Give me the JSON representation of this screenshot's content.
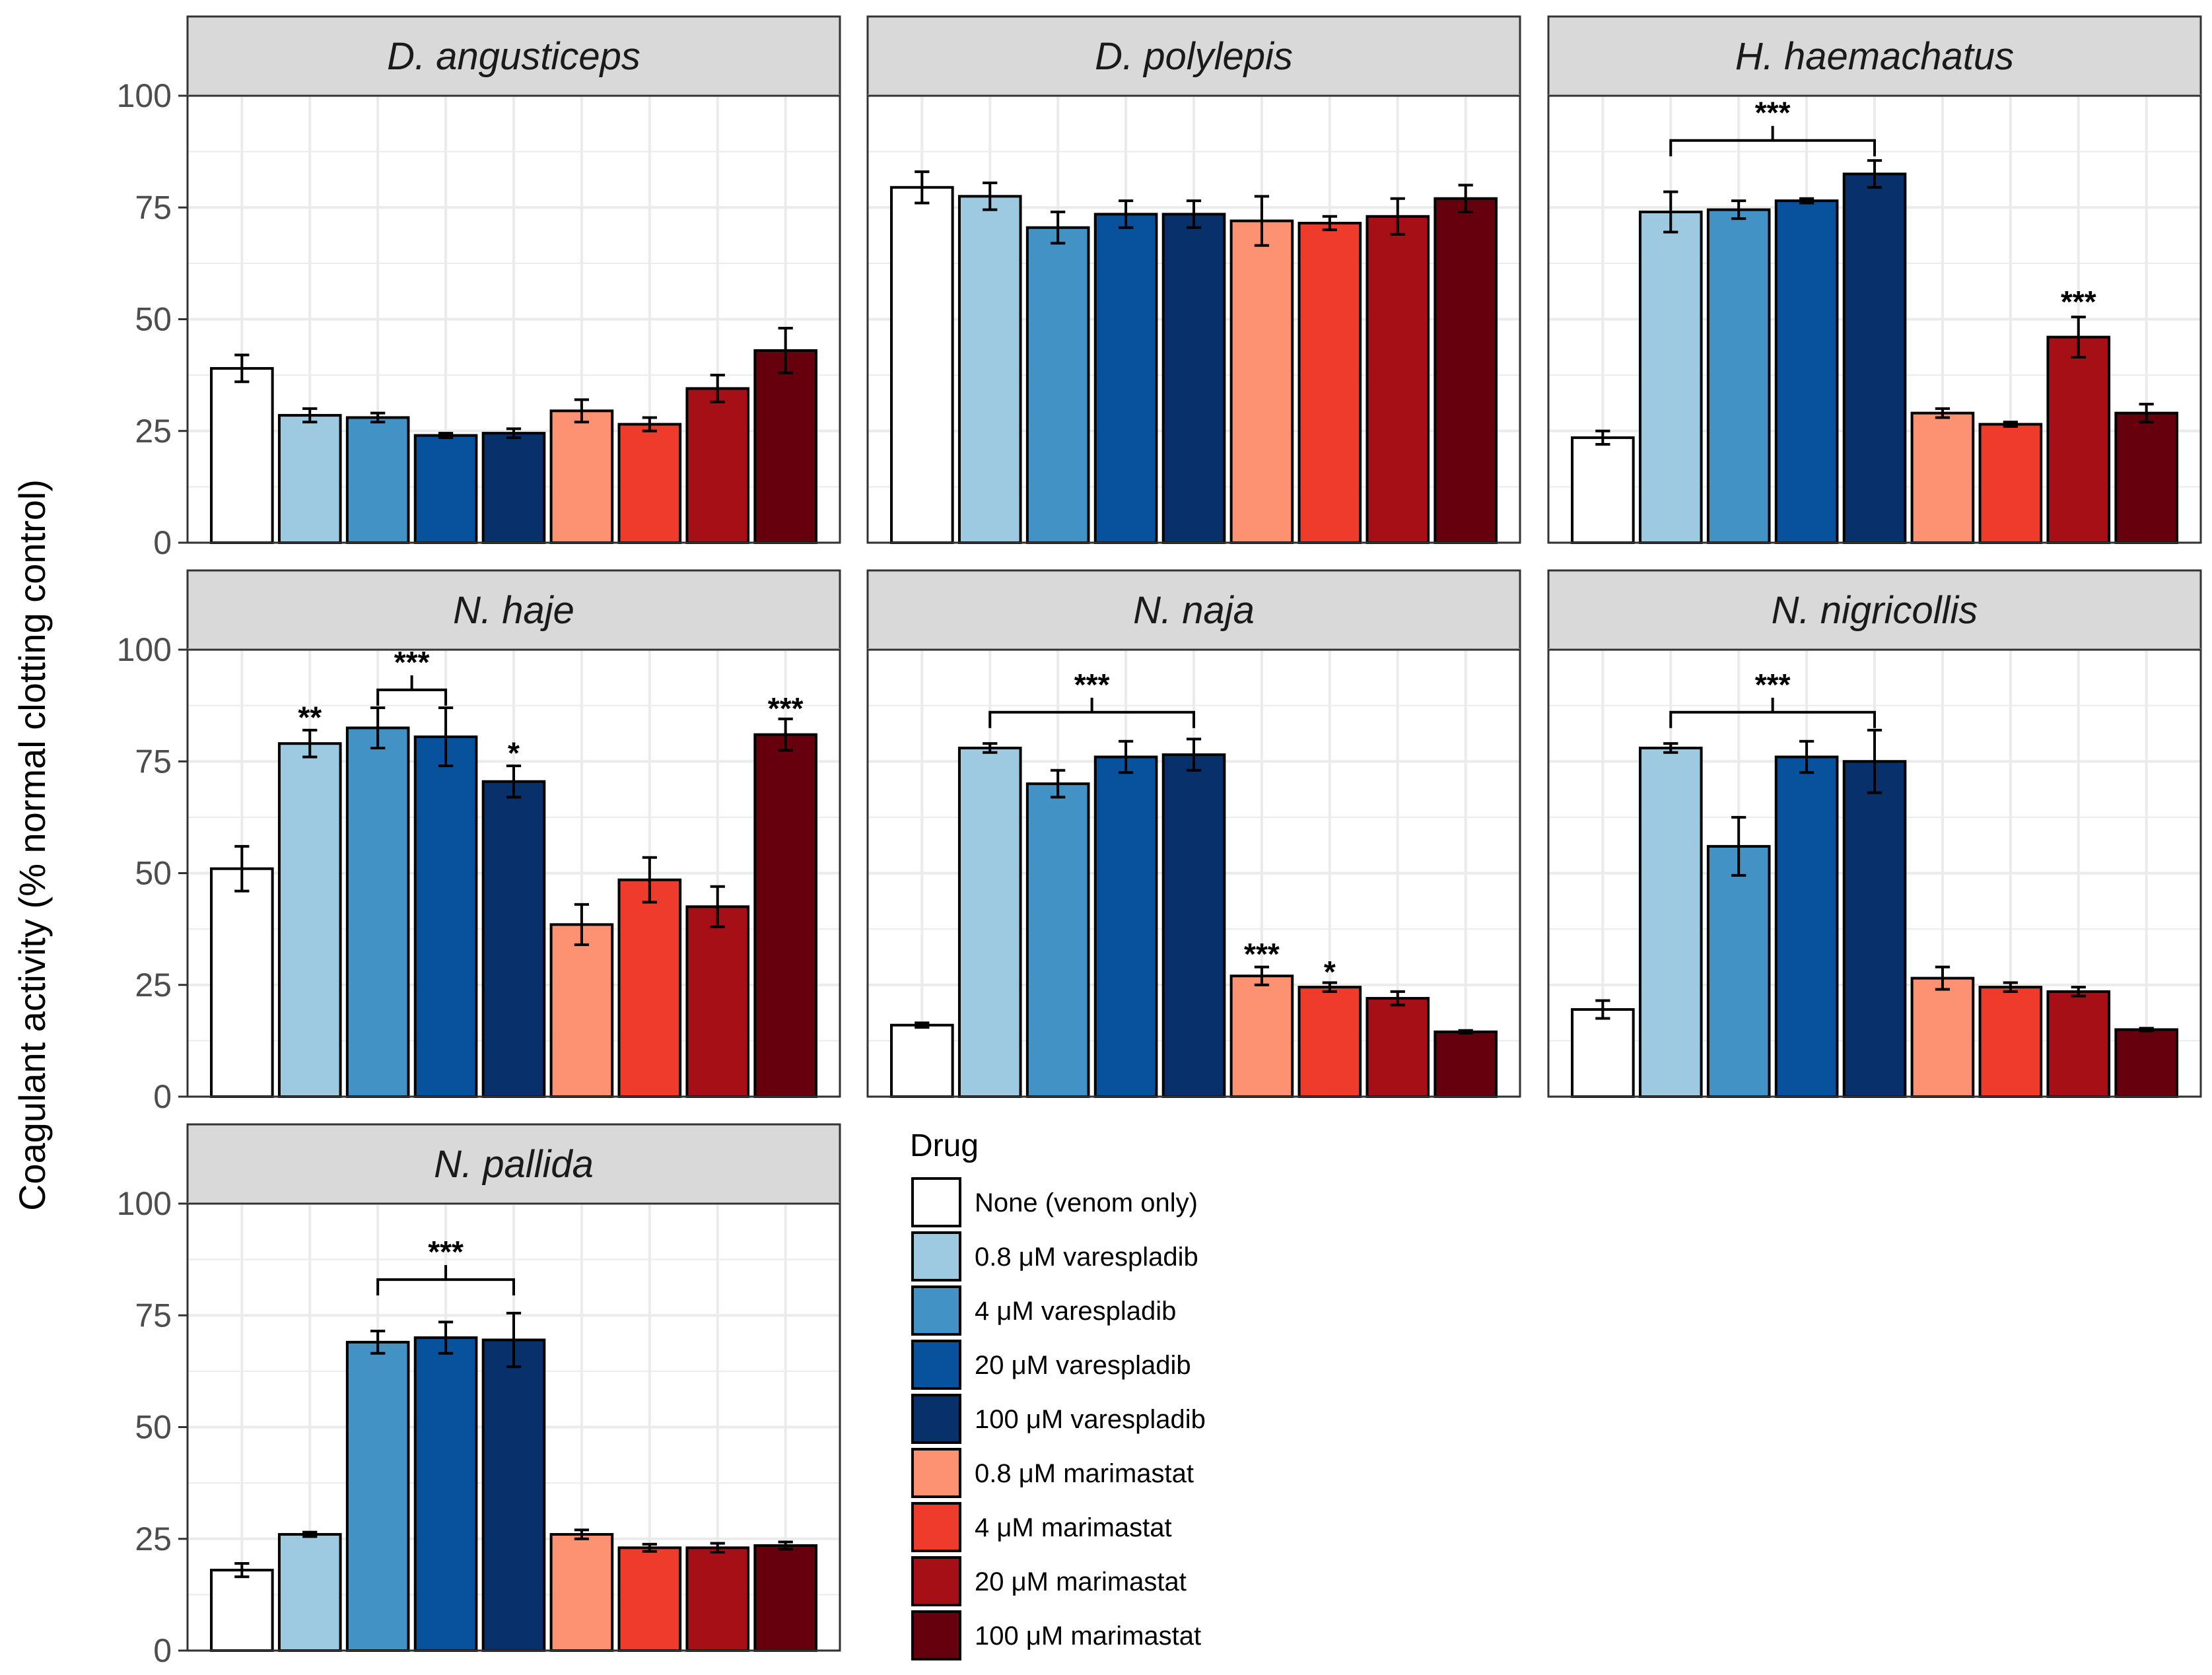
{
  "chart_data": {
    "type": "bar",
    "ylabel": "Coagulant activity (% normal clotting control)",
    "ylim": [
      0,
      100
    ],
    "yticks": [
      "0",
      "25",
      "50",
      "75",
      "100"
    ],
    "grid": true,
    "legend": {
      "title": "Drug",
      "placement": "bottom-center",
      "entries": [
        {
          "label": "None (venom only)",
          "color": "#ffffff"
        },
        {
          "label": "0.8 μM varespladib",
          "color": "#9ecae1"
        },
        {
          "label": "4 μM varespladib",
          "color": "#4292c6"
        },
        {
          "label": "20 μM varespladib",
          "color": "#08519c"
        },
        {
          "label": "100 μM varespladib",
          "color": "#08306b"
        },
        {
          "label": "0.8 μM marimastat",
          "color": "#fc9272"
        },
        {
          "label": "4 μM marimastat",
          "color": "#ef3b2c"
        },
        {
          "label": "20 μM marimastat",
          "color": "#a50f15"
        },
        {
          "label": "100 μM marimastat",
          "color": "#67000d"
        }
      ]
    },
    "panels": [
      {
        "title": "D. angusticeps",
        "values": [
          39,
          28.5,
          28,
          24,
          24.5,
          29.5,
          26.5,
          34.5,
          43
        ],
        "errors": [
          3,
          1.5,
          1,
          0.5,
          1,
          2.5,
          1.5,
          3,
          5
        ],
        "annotations": []
      },
      {
        "title": "D. polylepis",
        "values": [
          79.5,
          77.5,
          70.5,
          73.5,
          73.5,
          72,
          71.5,
          73,
          77
        ],
        "errors": [
          3.5,
          3,
          3.5,
          3,
          3,
          5.5,
          1.5,
          4,
          3
        ],
        "annotations": []
      },
      {
        "title": "H. haemachatus",
        "values": [
          23.5,
          74,
          74.5,
          76.5,
          82.5,
          29,
          26.5,
          46,
          29
        ],
        "errors": [
          1.5,
          4.5,
          2,
          0.5,
          3,
          1,
          0.5,
          4.5,
          2
        ],
        "annotations": [
          {
            "label": "***",
            "from": 1,
            "to": 4,
            "y": 90
          },
          {
            "label": "***",
            "bar": 7,
            "y": 53
          }
        ]
      },
      {
        "title": "N. haje",
        "values": [
          51,
          79,
          82.5,
          80.5,
          70.5,
          38.5,
          48.5,
          42.5,
          81
        ],
        "errors": [
          5,
          3,
          4.5,
          6.5,
          3.5,
          4.5,
          5,
          4.5,
          3.5
        ],
        "annotations": [
          {
            "label": "**",
            "bar": 1,
            "y": 84
          },
          {
            "label": "***",
            "from": 2,
            "to": 3,
            "y": 91
          },
          {
            "label": "*",
            "bar": 4,
            "y": 76
          },
          {
            "label": "***",
            "bar": 8,
            "y": 86
          }
        ]
      },
      {
        "title": "N. naja",
        "values": [
          16,
          78,
          70,
          76,
          76.5,
          27,
          24.5,
          22,
          14.5
        ],
        "errors": [
          0.5,
          1,
          3,
          3.5,
          3.5,
          2,
          1,
          1.5,
          0.3
        ],
        "annotations": [
          {
            "label": "***",
            "from": 1,
            "to": 4,
            "y": 86
          },
          {
            "label": "***",
            "bar": 5,
            "y": 31
          },
          {
            "label": "*",
            "bar": 6,
            "y": 27
          }
        ]
      },
      {
        "title": "N. nigricollis",
        "values": [
          19.5,
          78,
          56,
          76,
          75,
          26.5,
          24.5,
          23.5,
          15
        ],
        "errors": [
          2,
          1,
          6.5,
          3.5,
          7,
          2.5,
          1,
          1,
          0.3
        ],
        "annotations": [
          {
            "label": "***",
            "from": 1,
            "to": 4,
            "y": 86
          }
        ]
      },
      {
        "title": "N. pallida",
        "values": [
          18,
          26,
          69,
          70,
          69.5,
          26,
          23,
          23,
          23.5
        ],
        "errors": [
          1.5,
          0.5,
          2.5,
          3.5,
          6,
          1,
          0.8,
          1,
          0.8
        ],
        "annotations": [
          {
            "label": "***",
            "from": 2,
            "to": 4,
            "y": 83
          }
        ]
      }
    ]
  }
}
